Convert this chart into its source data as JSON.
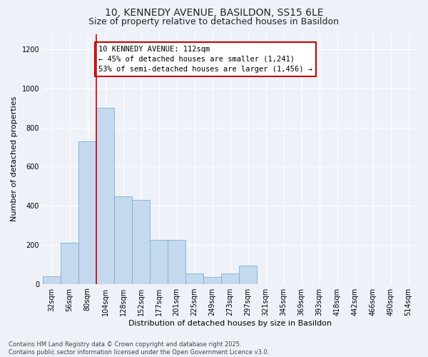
{
  "title_line1": "10, KENNEDY AVENUE, BASILDON, SS15 6LE",
  "title_line2": "Size of property relative to detached houses in Basildon",
  "xlabel": "Distribution of detached houses by size in Basildon",
  "ylabel": "Number of detached properties",
  "categories": [
    "32sqm",
    "56sqm",
    "80sqm",
    "104sqm",
    "128sqm",
    "152sqm",
    "177sqm",
    "201sqm",
    "225sqm",
    "249sqm",
    "273sqm",
    "297sqm",
    "321sqm",
    "345sqm",
    "369sqm",
    "393sqm",
    "418sqm",
    "442sqm",
    "466sqm",
    "490sqm",
    "514sqm"
  ],
  "values": [
    40,
    210,
    730,
    900,
    450,
    430,
    225,
    225,
    55,
    35,
    55,
    95,
    0,
    0,
    0,
    0,
    0,
    0,
    0,
    0,
    0
  ],
  "bar_color": "#c5d9ee",
  "bar_edge_color": "#7aadd4",
  "red_line_index": 3,
  "annotation_text_line1": "10 KENNEDY AVENUE: 112sqm",
  "annotation_text_line2": "← 45% of detached houses are smaller (1,241)",
  "annotation_text_line3": "53% of semi-detached houses are larger (1,456) →",
  "annotation_box_color": "#ffffff",
  "annotation_box_edge_color": "#cc0000",
  "ylim": [
    0,
    1280
  ],
  "yticks": [
    0,
    200,
    400,
    600,
    800,
    1000,
    1200
  ],
  "footer_line1": "Contains HM Land Registry data © Crown copyright and database right 2025.",
  "footer_line2": "Contains public sector information licensed under the Open Government Licence v3.0.",
  "background_color": "#eef2f8",
  "grid_color": "#ffffff",
  "title_fontsize": 10,
  "subtitle_fontsize": 9,
  "axis_label_fontsize": 8,
  "tick_fontsize": 7,
  "annotation_fontsize": 7.5,
  "footer_fontsize": 6
}
